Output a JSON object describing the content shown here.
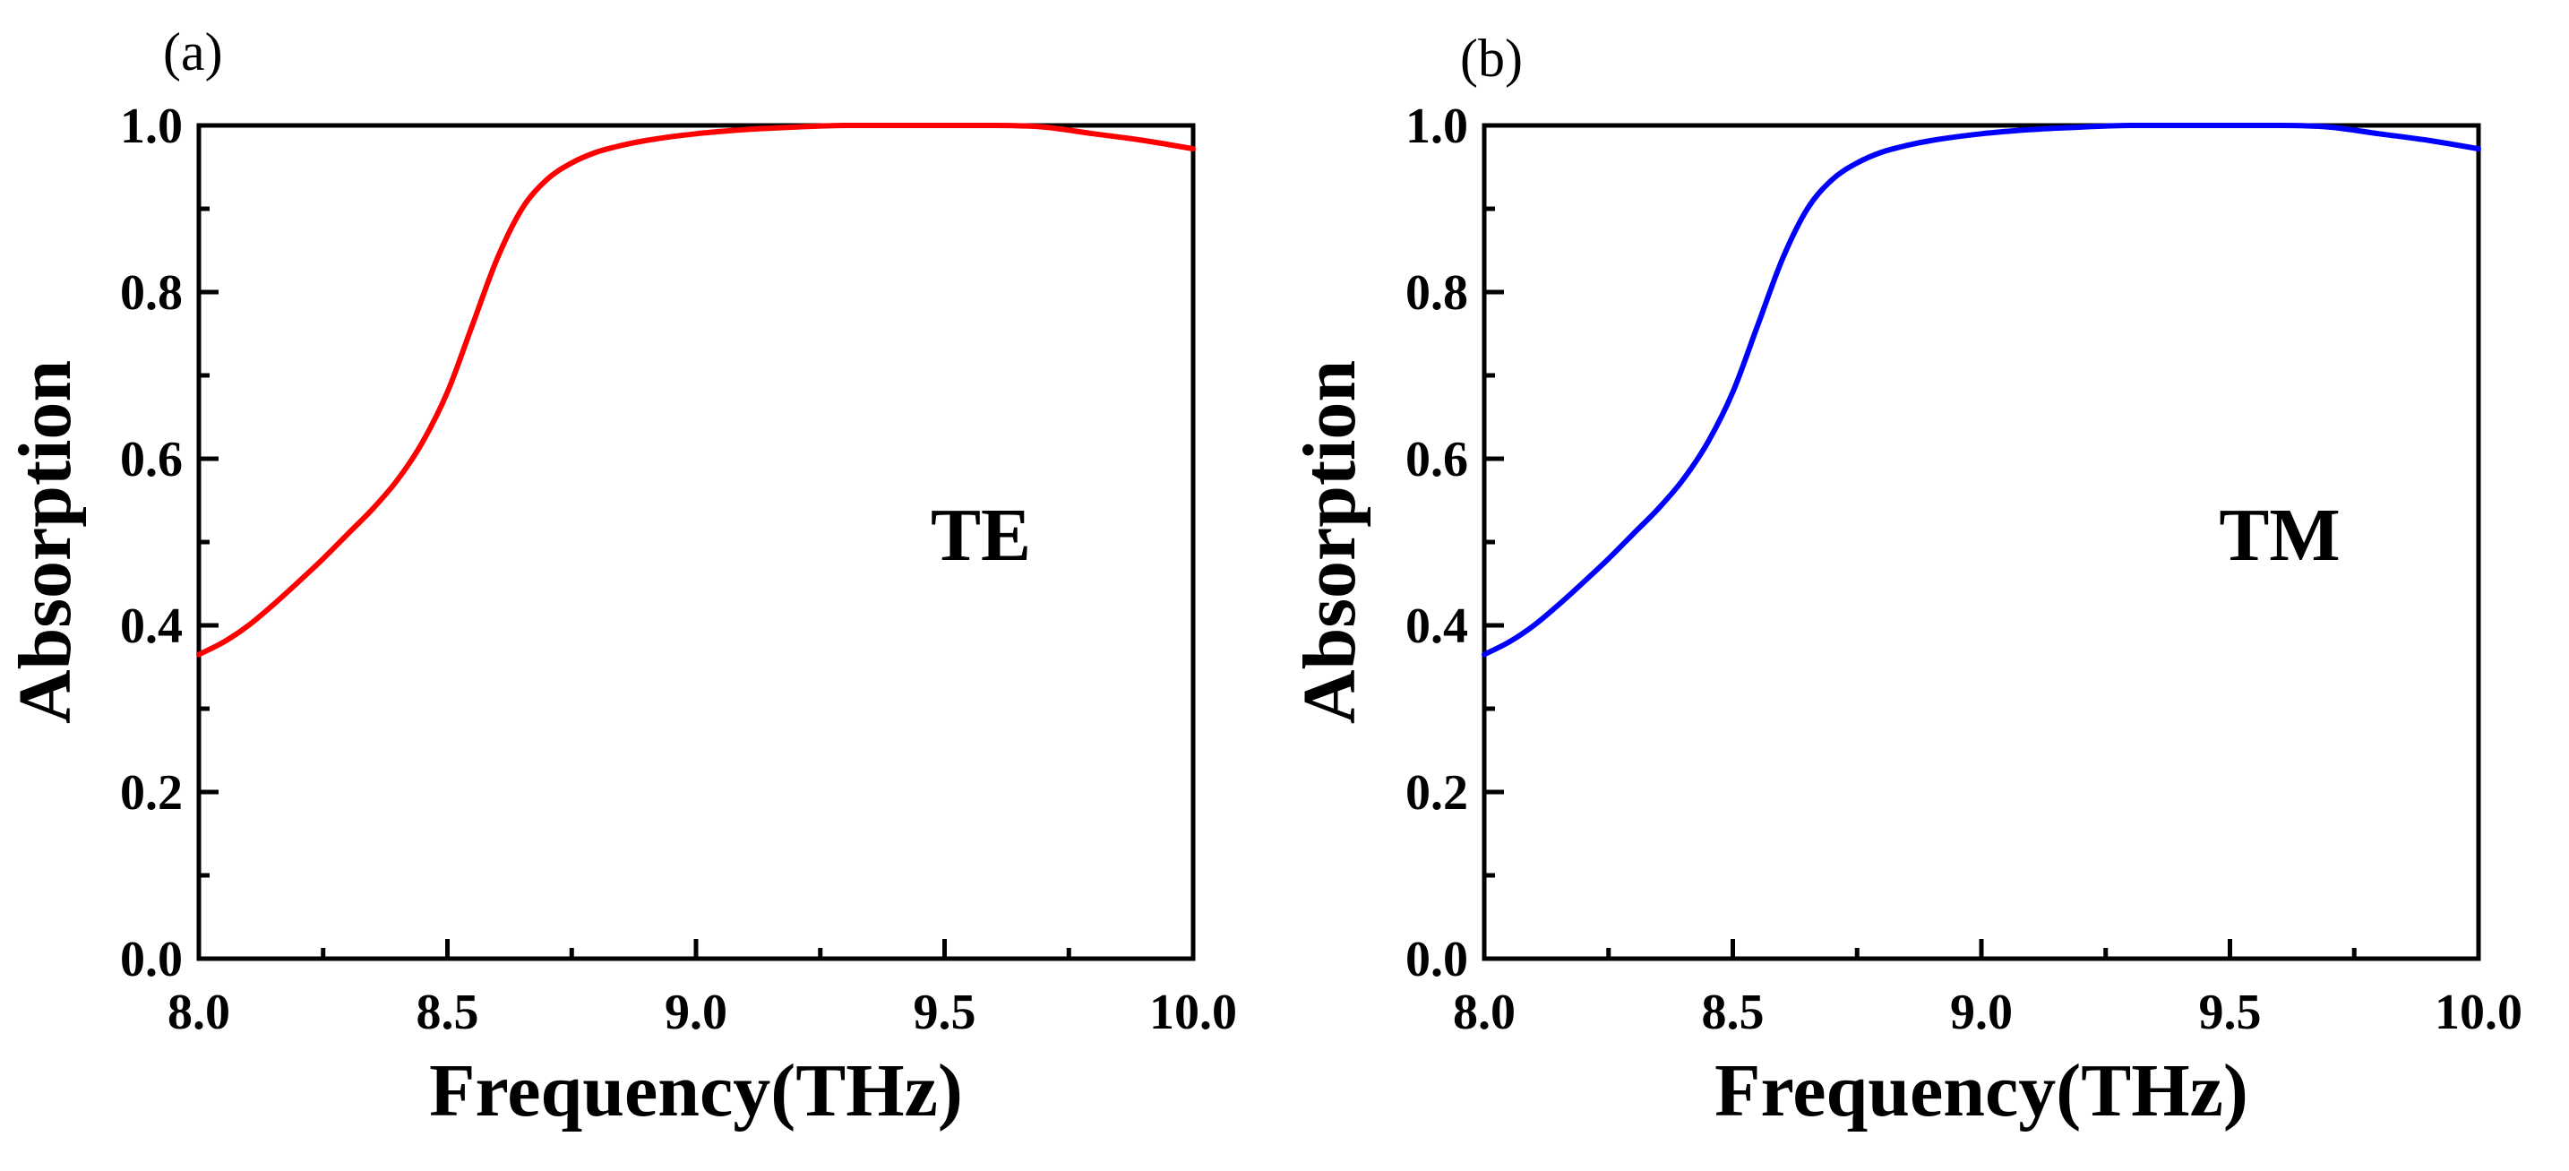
{
  "chart_data": [
    {
      "type": "line",
      "panel_label": "(a)",
      "annotation": "TE",
      "xlabel": "Frequency(THz)",
      "ylabel": "Absorption",
      "xlim": [
        8.0,
        10.0
      ],
      "ylim": [
        0.0,
        1.0
      ],
      "xticks": [
        8.0,
        8.5,
        9.0,
        9.5,
        10.0
      ],
      "xtick_labels": [
        "8.0",
        "8.5",
        "9.0",
        "9.5",
        "10.0"
      ],
      "yticks": [
        0.0,
        0.2,
        0.4,
        0.6,
        0.8,
        1.0
      ],
      "ytick_labels": [
        "0.0",
        "0.2",
        "0.4",
        "0.6",
        "0.8",
        "1.0"
      ],
      "grid": false,
      "series": [
        {
          "name": "TE",
          "color": "#ff0000",
          "x": [
            8.0,
            8.05,
            8.1,
            8.15,
            8.2,
            8.25,
            8.3,
            8.35,
            8.4,
            8.45,
            8.5,
            8.55,
            8.6,
            8.65,
            8.7,
            8.75,
            8.8,
            8.85,
            8.9,
            9.0,
            9.1,
            9.2,
            9.3,
            9.4,
            9.5,
            9.6,
            9.7,
            9.8,
            9.9,
            10.0
          ],
          "y": [
            0.365,
            0.38,
            0.4,
            0.425,
            0.452,
            0.48,
            0.51,
            0.54,
            0.575,
            0.62,
            0.68,
            0.76,
            0.84,
            0.9,
            0.935,
            0.955,
            0.968,
            0.976,
            0.982,
            0.99,
            0.995,
            0.998,
            1.0,
            1.0,
            1.0,
            1.0,
            0.998,
            0.99,
            0.982,
            0.972
          ]
        }
      ]
    },
    {
      "type": "line",
      "panel_label": "(b)",
      "annotation": "TM",
      "xlabel": "Frequency(THz)",
      "ylabel": "Absorption",
      "xlim": [
        8.0,
        10.0
      ],
      "ylim": [
        0.0,
        1.0
      ],
      "xticks": [
        8.0,
        8.5,
        9.0,
        9.5,
        10.0
      ],
      "xtick_labels": [
        "8.0",
        "8.5",
        "9.0",
        "9.5",
        "10.0"
      ],
      "yticks": [
        0.0,
        0.2,
        0.4,
        0.6,
        0.8,
        1.0
      ],
      "ytick_labels": [
        "0.0",
        "0.2",
        "0.4",
        "0.6",
        "0.8",
        "1.0"
      ],
      "grid": false,
      "series": [
        {
          "name": "TM",
          "color": "#0000ff",
          "x": [
            8.0,
            8.05,
            8.1,
            8.15,
            8.2,
            8.25,
            8.3,
            8.35,
            8.4,
            8.45,
            8.5,
            8.55,
            8.6,
            8.65,
            8.7,
            8.75,
            8.8,
            8.85,
            8.9,
            9.0,
            9.1,
            9.2,
            9.3,
            9.4,
            9.5,
            9.6,
            9.7,
            9.8,
            9.9,
            10.0
          ],
          "y": [
            0.365,
            0.38,
            0.4,
            0.425,
            0.452,
            0.48,
            0.51,
            0.54,
            0.575,
            0.62,
            0.68,
            0.76,
            0.84,
            0.9,
            0.935,
            0.955,
            0.968,
            0.976,
            0.982,
            0.99,
            0.995,
            0.998,
            1.0,
            1.0,
            1.0,
            1.0,
            0.998,
            0.99,
            0.982,
            0.972
          ]
        }
      ]
    }
  ]
}
